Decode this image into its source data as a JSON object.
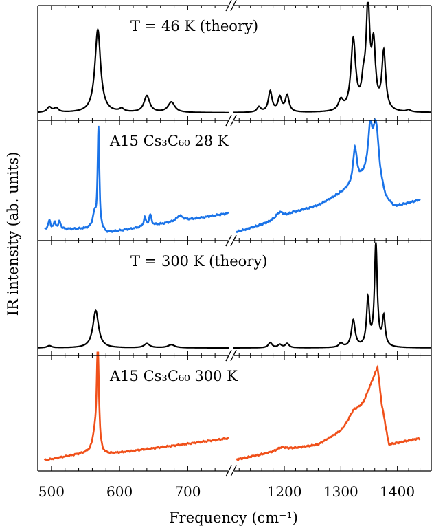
{
  "chart_data": {
    "type": "line",
    "xlabel": "Frequency (cm⁻¹)",
    "ylabel": "IR intensity (ab. units)",
    "broken_x_axis": true,
    "left_segment": {
      "xlim": [
        480,
        760
      ],
      "ticks": [
        500,
        600,
        700
      ]
    },
    "right_segment": {
      "xlim": [
        1110,
        1460
      ],
      "ticks": [
        1200,
        1300,
        1400
      ]
    },
    "x_tick_labels": [
      "500",
      "600",
      "700",
      "1200",
      "1300",
      "1400"
    ],
    "grid": false,
    "panels": [
      {
        "label": "T = 46 K (theory)",
        "color": "#000000",
        "kind": "theory",
        "ylim": [
          0,
          1
        ],
        "baseline": 0.02,
        "peaks": [
          [
            497,
            0.05,
            4
          ],
          [
            507,
            0.04,
            4
          ],
          [
            568,
            0.8,
            5
          ],
          [
            603,
            0.03,
            4
          ],
          [
            640,
            0.16,
            5
          ],
          [
            676,
            0.1,
            6
          ],
          [
            1155,
            0.05,
            4
          ],
          [
            1175,
            0.2,
            4
          ],
          [
            1192,
            0.14,
            4
          ],
          [
            1205,
            0.16,
            4
          ],
          [
            1300,
            0.1,
            5
          ],
          [
            1322,
            0.68,
            5
          ],
          [
            1340,
            0.2,
            4
          ],
          [
            1348,
            0.96,
            4
          ],
          [
            1358,
            0.58,
            4
          ],
          [
            1376,
            0.56,
            4
          ],
          [
            1420,
            0.02,
            4
          ]
        ]
      },
      {
        "label": "A15 Cs₃C₆₀ 28 K",
        "color": "#1a73e8",
        "kind": "experiment",
        "ylim": [
          0,
          1
        ],
        "left": {
          "base": [
            [
              490,
              0.05
            ],
            [
              570,
              0.06
            ],
            [
              580,
              0.02
            ],
            [
              760,
              0.2
            ]
          ],
          "peaks": [
            [
              497,
              0.08,
              2
            ],
            [
              505,
              0.06,
              2
            ],
            [
              512,
              0.07,
              2
            ],
            [
              569,
              0.92,
              1.5
            ],
            [
              563,
              0.12,
              3
            ],
            [
              637,
              0.08,
              2
            ],
            [
              645,
              0.1,
              2
            ],
            [
              688,
              0.05,
              6
            ]
          ]
        },
        "right": {
          "base": [
            [
              1110,
              0.02
            ],
            [
              1200,
              0.15
            ],
            [
              1215,
              0.2
            ],
            [
              1260,
              0.27
            ],
            [
              1300,
              0.38
            ],
            [
              1340,
              0.5
            ],
            [
              1365,
              0.48
            ],
            [
              1380,
              0.3
            ],
            [
              1395,
              0.25
            ],
            [
              1440,
              0.32
            ]
          ],
          "peaks": [
            [
              1192,
              0.07,
              10
            ],
            [
              1325,
              0.33,
              4
            ],
            [
              1352,
              0.42,
              5
            ],
            [
              1362,
              0.48,
              6
            ]
          ]
        }
      },
      {
        "label": "T = 300 K (theory)",
        "color": "#000000",
        "kind": "theory",
        "ylim": [
          0,
          1
        ],
        "baseline": 0.02,
        "peaks": [
          [
            497,
            0.02,
            4
          ],
          [
            565,
            0.36,
            5
          ],
          [
            640,
            0.04,
            5
          ],
          [
            676,
            0.03,
            6
          ],
          [
            1175,
            0.05,
            4
          ],
          [
            1192,
            0.03,
            4
          ],
          [
            1205,
            0.04,
            4
          ],
          [
            1300,
            0.04,
            4
          ],
          [
            1322,
            0.26,
            4
          ],
          [
            1348,
            0.45,
            3
          ],
          [
            1362,
            0.98,
            3
          ],
          [
            1376,
            0.28,
            3
          ]
        ]
      },
      {
        "label": "A15 Cs₃C₆₀ 300 K",
        "color": "#f0501a",
        "kind": "experiment",
        "ylim": [
          0,
          1
        ],
        "left": {
          "base": [
            [
              490,
              0.05
            ],
            [
              560,
              0.13
            ],
            [
              575,
              0.1
            ],
            [
              760,
              0.26
            ]
          ],
          "peaks": [
            [
              568,
              1.02,
              2
            ],
            [
              563,
              0.12,
              3
            ]
          ]
        },
        "right": {
          "base": [
            [
              1110,
              0.05
            ],
            [
              1200,
              0.15
            ],
            [
              1260,
              0.2
            ],
            [
              1300,
              0.33
            ],
            [
              1340,
              0.6
            ],
            [
              1365,
              0.94
            ],
            [
              1372,
              0.6
            ],
            [
              1385,
              0.2
            ],
            [
              1440,
              0.26
            ]
          ],
          "peaks": [
            [
              1195,
              0.03,
              10
            ],
            [
              1322,
              0.05,
              8
            ]
          ]
        }
      }
    ]
  }
}
